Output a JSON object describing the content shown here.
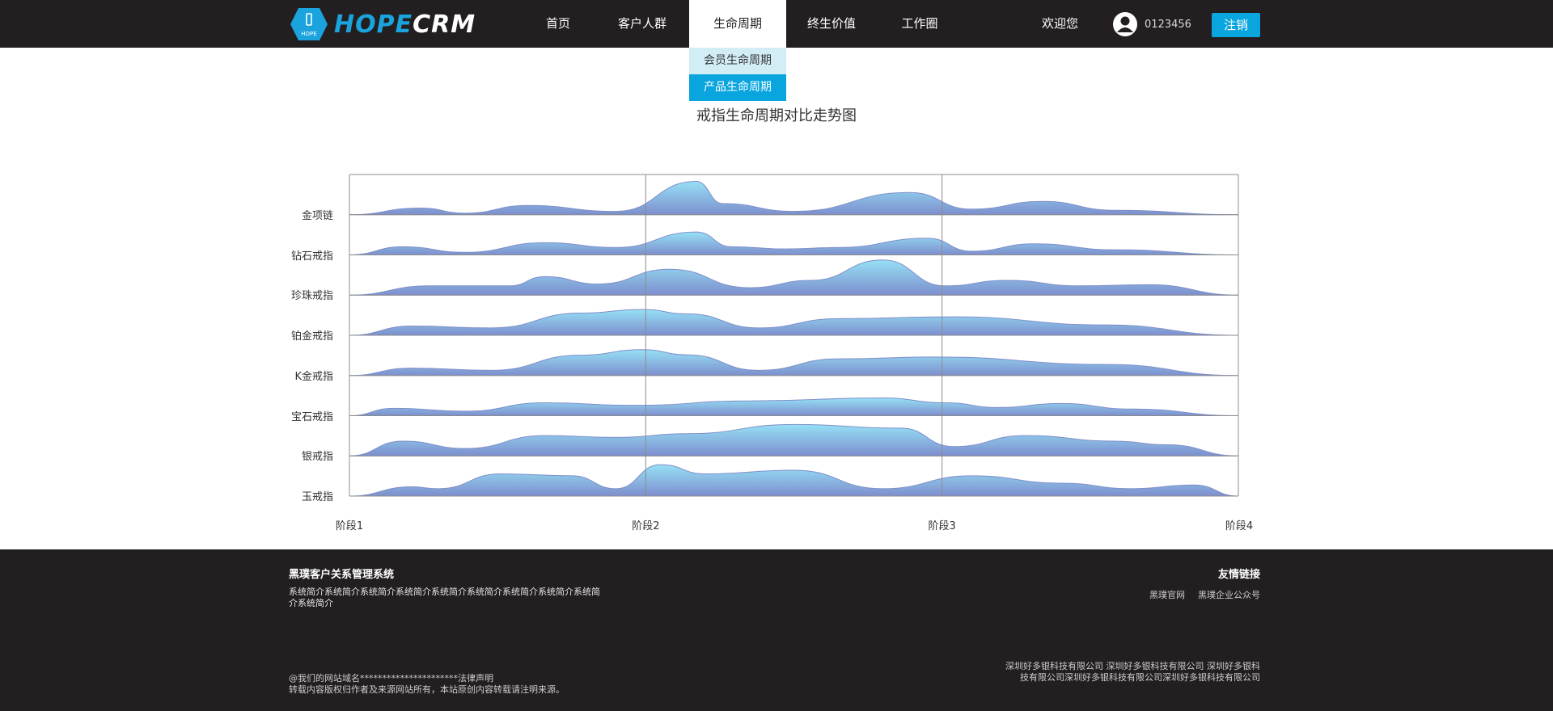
{
  "header": {
    "logo_badge": "HOPE",
    "logo_hope": "HOPE",
    "logo_crm": "CRM",
    "nav": [
      "首页",
      "客户人群",
      "生命周期",
      "终生价值",
      "工作圈"
    ],
    "active_nav_index": 2,
    "dropdown": [
      "会员生命周期",
      "产品生命周期"
    ],
    "welcome": "欢迎您",
    "user_id": "0123456",
    "logout": "注销"
  },
  "chart_data": {
    "type": "area",
    "title": "戒指生命周期对比走势图",
    "categories": [
      "金项链",
      "钻石戒指",
      "珍珠戒指",
      "铂金戒指",
      "K金戒指",
      "宝石戒指",
      "银戒指",
      "玉戒指"
    ],
    "x": [
      "阶段1",
      "阶段2",
      "阶段3",
      "阶段4"
    ],
    "series": [
      {
        "name": "金项链",
        "values": [
          [
            0,
            0
          ],
          [
            0.08,
            0.18
          ],
          [
            0.13,
            0.04
          ],
          [
            0.2,
            0.25
          ],
          [
            0.3,
            0.09
          ],
          [
            0.39,
            0.9
          ],
          [
            0.42,
            0.3
          ],
          [
            0.5,
            0.09
          ],
          [
            0.63,
            0.6
          ],
          [
            0.7,
            0.15
          ],
          [
            0.78,
            0.36
          ],
          [
            0.86,
            0.12
          ],
          [
            1,
            0
          ]
        ]
      },
      {
        "name": "钻石戒指",
        "values": [
          [
            0,
            0
          ],
          [
            0.06,
            0.22
          ],
          [
            0.13,
            0.07
          ],
          [
            0.22,
            0.33
          ],
          [
            0.3,
            0.2
          ],
          [
            0.39,
            0.62
          ],
          [
            0.43,
            0.22
          ],
          [
            0.49,
            0.16
          ],
          [
            0.55,
            0.2
          ],
          [
            0.65,
            0.45
          ],
          [
            0.7,
            0.1
          ],
          [
            0.77,
            0.3
          ],
          [
            0.86,
            0.14
          ],
          [
            1,
            0
          ]
        ]
      },
      {
        "name": "珍珠戒指",
        "values": [
          [
            0,
            0
          ],
          [
            0.09,
            0.25
          ],
          [
            0.18,
            0.25
          ],
          [
            0.22,
            0.5
          ],
          [
            0.28,
            0.3
          ],
          [
            0.36,
            0.7
          ],
          [
            0.45,
            0.2
          ],
          [
            0.52,
            0.4
          ],
          [
            0.6,
            0.95
          ],
          [
            0.67,
            0.25
          ],
          [
            0.74,
            0.4
          ],
          [
            0.82,
            0.25
          ],
          [
            0.9,
            0.28
          ],
          [
            1,
            0
          ]
        ]
      },
      {
        "name": "铂金戒指",
        "values": [
          [
            0,
            0
          ],
          [
            0.07,
            0.25
          ],
          [
            0.16,
            0.2
          ],
          [
            0.26,
            0.6
          ],
          [
            0.33,
            0.7
          ],
          [
            0.38,
            0.58
          ],
          [
            0.46,
            0.2
          ],
          [
            0.55,
            0.45
          ],
          [
            0.68,
            0.5
          ],
          [
            0.85,
            0.28
          ],
          [
            1,
            0
          ]
        ]
      },
      {
        "name": "K金戒指",
        "values": [
          [
            0,
            0
          ],
          [
            0.07,
            0.2
          ],
          [
            0.16,
            0.14
          ],
          [
            0.26,
            0.55
          ],
          [
            0.33,
            0.7
          ],
          [
            0.38,
            0.56
          ],
          [
            0.46,
            0.14
          ],
          [
            0.55,
            0.45
          ],
          [
            0.66,
            0.5
          ],
          [
            0.85,
            0.3
          ],
          [
            1,
            0
          ]
        ]
      },
      {
        "name": "宝石戒指",
        "values": [
          [
            0,
            0
          ],
          [
            0.05,
            0.2
          ],
          [
            0.13,
            0.12
          ],
          [
            0.22,
            0.35
          ],
          [
            0.32,
            0.28
          ],
          [
            0.45,
            0.4
          ],
          [
            0.6,
            0.48
          ],
          [
            0.67,
            0.35
          ],
          [
            0.73,
            0.22
          ],
          [
            0.8,
            0.33
          ],
          [
            0.88,
            0.18
          ],
          [
            1,
            0
          ]
        ]
      },
      {
        "name": "银戒指",
        "values": [
          [
            0,
            0
          ],
          [
            0.06,
            0.4
          ],
          [
            0.13,
            0.2
          ],
          [
            0.22,
            0.55
          ],
          [
            0.3,
            0.5
          ],
          [
            0.38,
            0.6
          ],
          [
            0.5,
            0.85
          ],
          [
            0.62,
            0.75
          ],
          [
            0.68,
            0.25
          ],
          [
            0.76,
            0.55
          ],
          [
            0.86,
            0.4
          ],
          [
            0.92,
            0.3
          ],
          [
            1,
            0
          ]
        ]
      },
      {
        "name": "玉戒指",
        "values": [
          [
            0,
            0
          ],
          [
            0.07,
            0.25
          ],
          [
            0.1,
            0.2
          ],
          [
            0.17,
            0.6
          ],
          [
            0.25,
            0.55
          ],
          [
            0.3,
            0.2
          ],
          [
            0.35,
            0.85
          ],
          [
            0.4,
            0.6
          ],
          [
            0.5,
            0.7
          ],
          [
            0.6,
            0.2
          ],
          [
            0.7,
            0.55
          ],
          [
            0.8,
            0.35
          ],
          [
            0.88,
            0.2
          ],
          [
            0.95,
            0.3
          ],
          [
            1,
            0
          ]
        ]
      }
    ],
    "grid": true,
    "colors": {
      "top": "#96e0f5",
      "bottom": "#7d8fce",
      "stroke": "#7f8fc8",
      "border": "#8c8c8c"
    }
  },
  "footer": {
    "title": "黑璞客户关系管理系统",
    "intro": "系统简介系统简介系统简介系统简介系统简介系统简介系统简介系统简介系统简介系统简介",
    "links_title": "友情链接",
    "links": [
      "黑璞官网",
      "黑璞企业公众号"
    ],
    "copyright_1": "@我们的网站域名**********************法律声明",
    "copyright_2": "转载内容版权归作者及来源网站所有，本站原创内容转载请注明来源。",
    "company": "深圳好多银科技有限公司 深圳好多银科技有限公司 深圳好多银科技有限公司深圳好多银科技有限公司深圳好多银科技有限公司"
  }
}
